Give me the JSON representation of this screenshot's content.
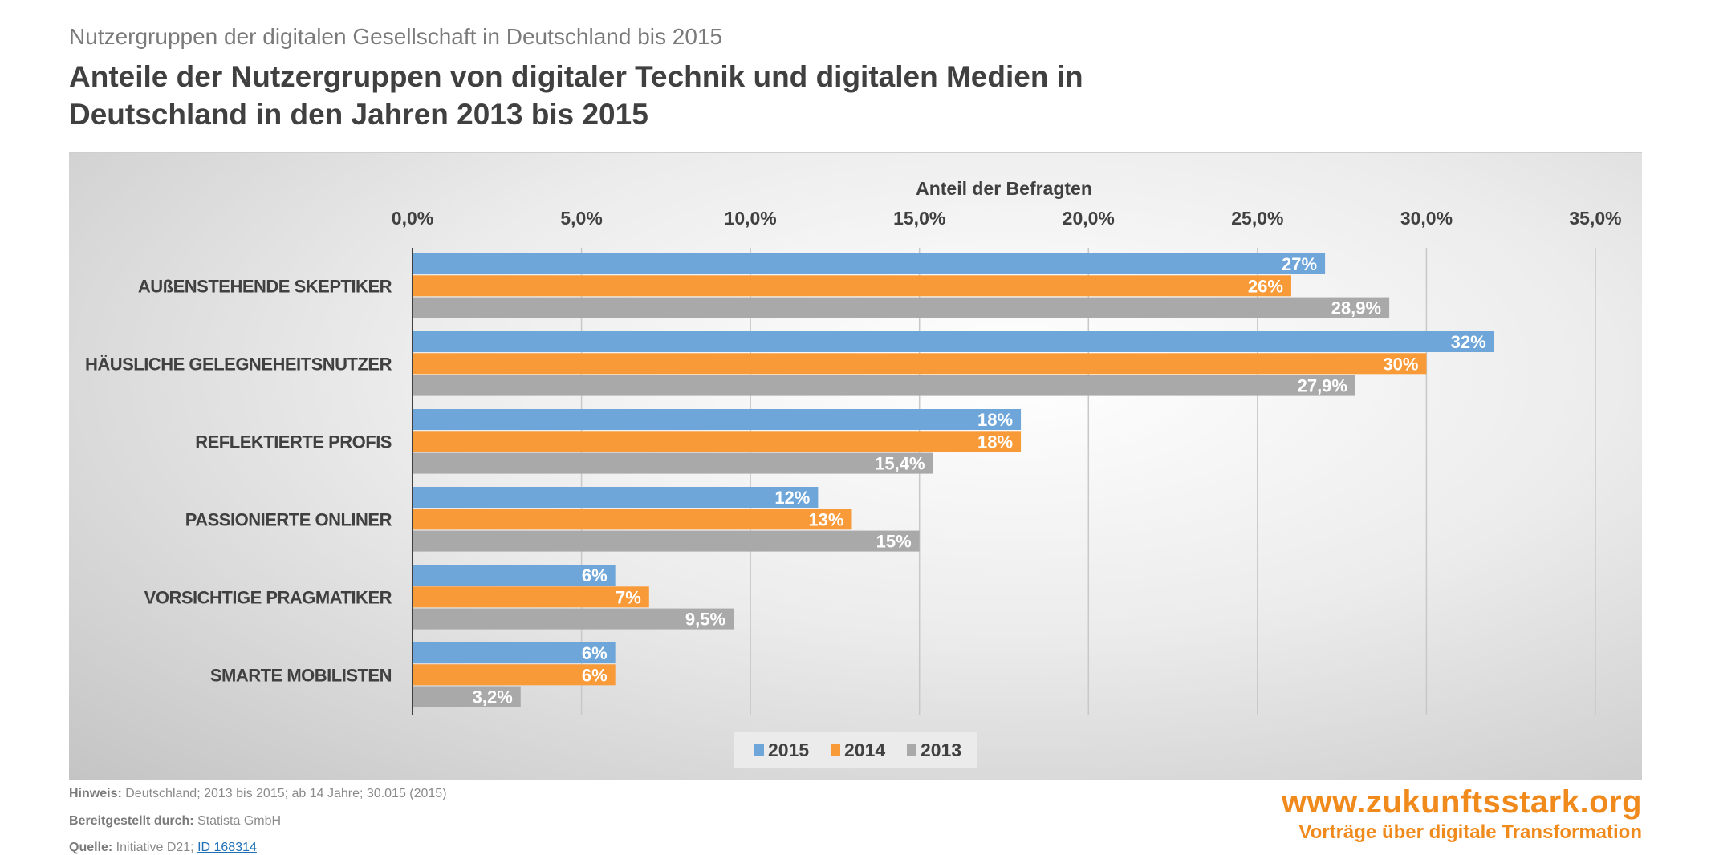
{
  "header": {
    "subtitle": "Nutzergruppen der digitalen Gesellschaft in Deutschland bis 2015",
    "title_line1": "Anteile der Nutzergruppen von digitaler Technik und digitalen Medien in",
    "title_line2": "Deutschland in den Jahren 2013 bis 2015"
  },
  "chart_data": {
    "type": "bar",
    "orientation": "horizontal",
    "xlabel": "Anteil der Befragten",
    "xlim": [
      0,
      35
    ],
    "x_ticks": [
      "0,0%",
      "5,0%",
      "10,0%",
      "15,0%",
      "20,0%",
      "25,0%",
      "30,0%",
      "35,0%"
    ],
    "x_axis_position": "top",
    "grid": true,
    "legend_position": "bottom",
    "categories": [
      "AUßENSTEHENDE SKEPTIKER",
      "HÄUSLICHE GELEGNEHEITSNUTZER",
      "REFLEKTIERTE PROFIS",
      "PASSIONIERTE ONLINER",
      "VORSICHTIGE PRAGMATIKER",
      "SMARTE MOBILISTEN"
    ],
    "series": [
      {
        "name": "2015",
        "color": "#6fa6da",
        "values": [
          27,
          32,
          18,
          12,
          6,
          6
        ],
        "labels": [
          "27%",
          "32%",
          "18%",
          "12%",
          "6%",
          "6%"
        ]
      },
      {
        "name": "2014",
        "color": "#f99a38",
        "values": [
          26,
          30,
          18,
          13,
          7,
          6
        ],
        "labels": [
          "26%",
          "30%",
          "18%",
          "13%",
          "7%",
          "6%"
        ]
      },
      {
        "name": "2013",
        "color": "#a9a9a9",
        "values": [
          28.9,
          27.9,
          15.4,
          15,
          9.5,
          3.2
        ],
        "labels": [
          "28,9%",
          "27,9%",
          "15,4%",
          "15%",
          "9,5%",
          "3,2%"
        ]
      }
    ]
  },
  "footer": {
    "hinweis_label": "Hinweis:",
    "hinweis_text": " Deutschland; 2013 bis 2015; ab 14 Jahre; 30.015 (2015)",
    "bereit_label": "Bereitgestellt durch:",
    "bereit_text": " Statista GmbH",
    "quelle_label": "Quelle:",
    "quelle_text": " Initiative D21; ",
    "quelle_link": "ID 168314"
  },
  "logo": {
    "url": "www.zukunftsstark.org",
    "tagline": "Vorträge über digitale Transformation"
  }
}
